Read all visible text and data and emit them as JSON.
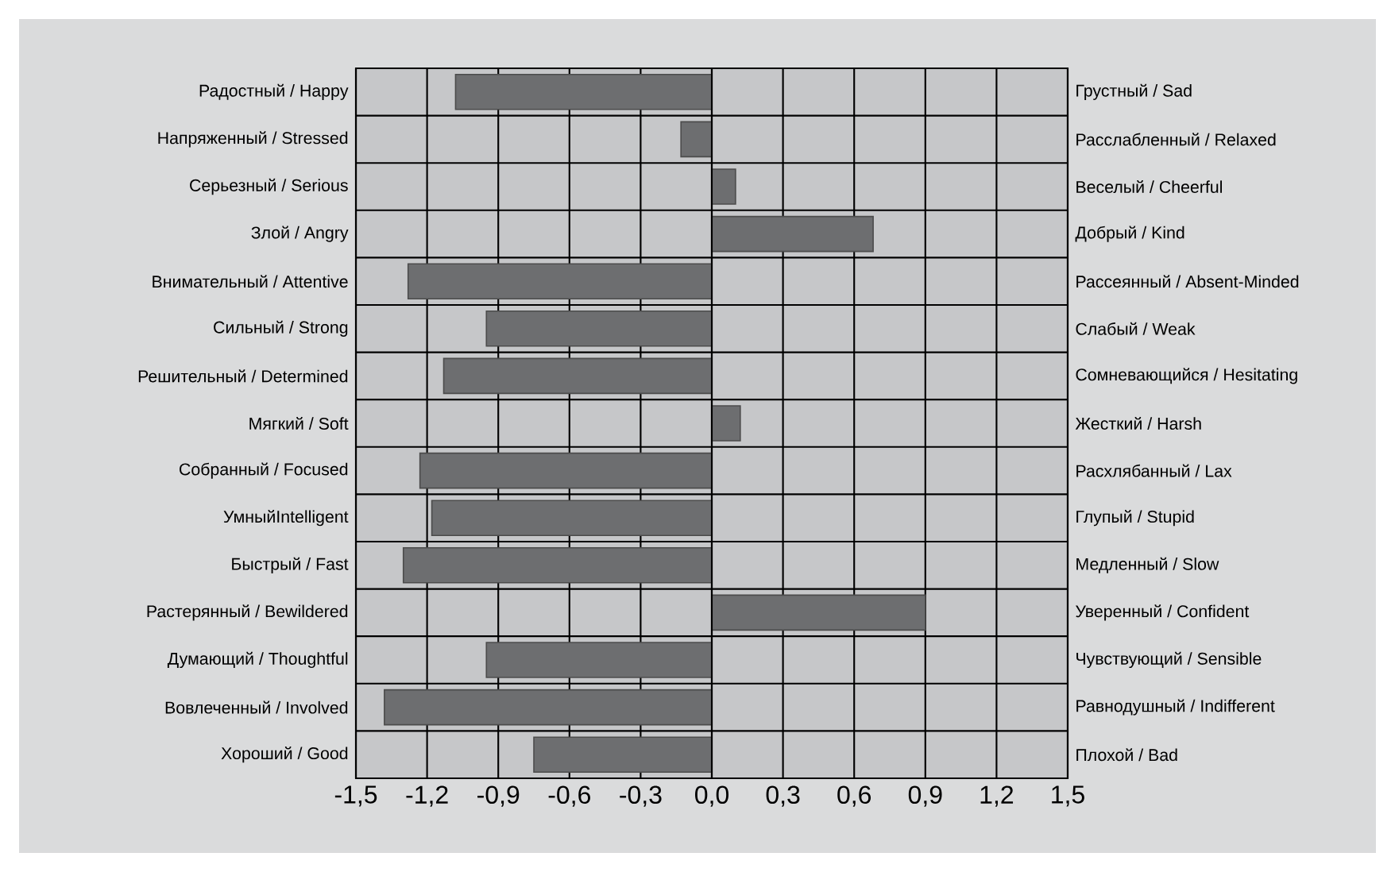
{
  "chart_data": {
    "type": "bar",
    "orientation": "horizontal",
    "categories": [
      "Радостный / Happy",
      "Напряженный / Stressed",
      "Серьезный / Serious",
      "Злой / Angry",
      "Внимательный / Attentive",
      "Сильный / Strong",
      "Решительный / Determined",
      "Мягкий / Soft",
      "Собранный / Focused",
      "УмныйIntelligent",
      "Быстрый / Fast",
      "Растерянный / Bewildered",
      "Думающий / Thoughtful",
      "Вовлеченный / Involved",
      "Хороший / Good"
    ],
    "y2_categories": [
      "Грустный / Sad",
      "Расслабленный / Relaxed",
      "Веселый / Cheerful",
      "Добрый / Kind",
      "Рассеянный / Absent-Minded",
      "Слабый / Weak",
      "Сомневающийся / Hesitating",
      "Жесткий / Harsh",
      "Расхлябанный / Lax",
      "Глупый / Stupid",
      "Медленный / Slow",
      "Уверенный / Confident",
      "Чувствующий / Sensible",
      "Равнодушный / Indifferent",
      "Плохой / Bad"
    ],
    "values": [
      -1.08,
      -0.13,
      0.1,
      0.68,
      -1.28,
      -0.95,
      -1.13,
      0.12,
      -1.23,
      -1.18,
      -1.3,
      0.9,
      -0.95,
      -1.38,
      -0.75
    ],
    "color": "#6d6e70",
    "xlim": [
      -1.5,
      1.5
    ],
    "xticks": [
      {
        "value": -1.5,
        "label": "-1,5"
      },
      {
        "value": -1.2,
        "label": "-1,2"
      },
      {
        "value": -0.9,
        "label": "-0,9"
      },
      {
        "value": -0.6,
        "label": "-0,6"
      },
      {
        "value": -0.3,
        "label": "-0,3"
      },
      {
        "value": 0.0,
        "label": "0,0"
      },
      {
        "value": 0.3,
        "label": "0,3"
      },
      {
        "value": 0.6,
        "label": "0,6"
      },
      {
        "value": 0.9,
        "label": "0,9"
      },
      {
        "value": 1.2,
        "label": "1,2"
      },
      {
        "value": 1.5,
        "label": "1,5"
      }
    ],
    "grid": true
  }
}
